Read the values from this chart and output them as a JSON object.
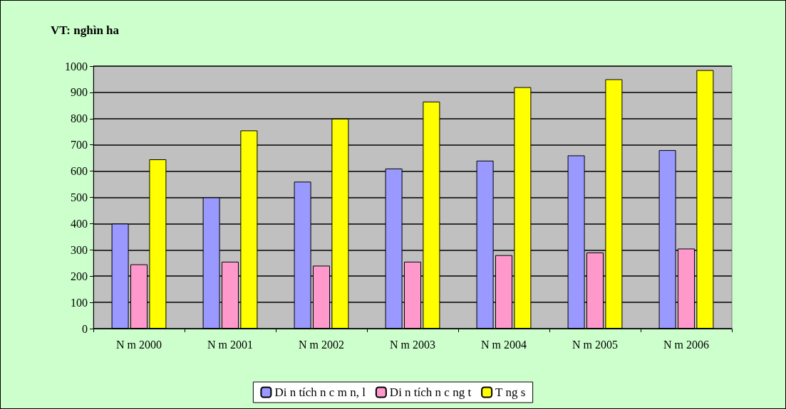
{
  "chart_data": {
    "type": "bar",
    "title": "VT: nghìn ha",
    "categories": [
      "N m 2000",
      "N m 2001",
      "N m 2002",
      "N m 2003",
      "N m 2004",
      "N m 2005",
      "N m 2006"
    ],
    "series": [
      {
        "name": "Di n tích n c m n, l",
        "color": "#9999ff",
        "values": [
          400,
          500,
          560,
          610,
          640,
          660,
          680
        ]
      },
      {
        "name": "Di n tích n c ng t",
        "color": "#ff99cc",
        "values": [
          245,
          255,
          240,
          255,
          280,
          290,
          305
        ]
      },
      {
        "name": "T ng s",
        "color": "#ffff00",
        "values": [
          645,
          755,
          800,
          865,
          920,
          950,
          985
        ]
      }
    ],
    "ylim": [
      0,
      1000
    ],
    "yticks": [
      0,
      100,
      200,
      300,
      400,
      500,
      600,
      700,
      800,
      900,
      1000
    ],
    "grid": "y",
    "legend": "bottom"
  }
}
